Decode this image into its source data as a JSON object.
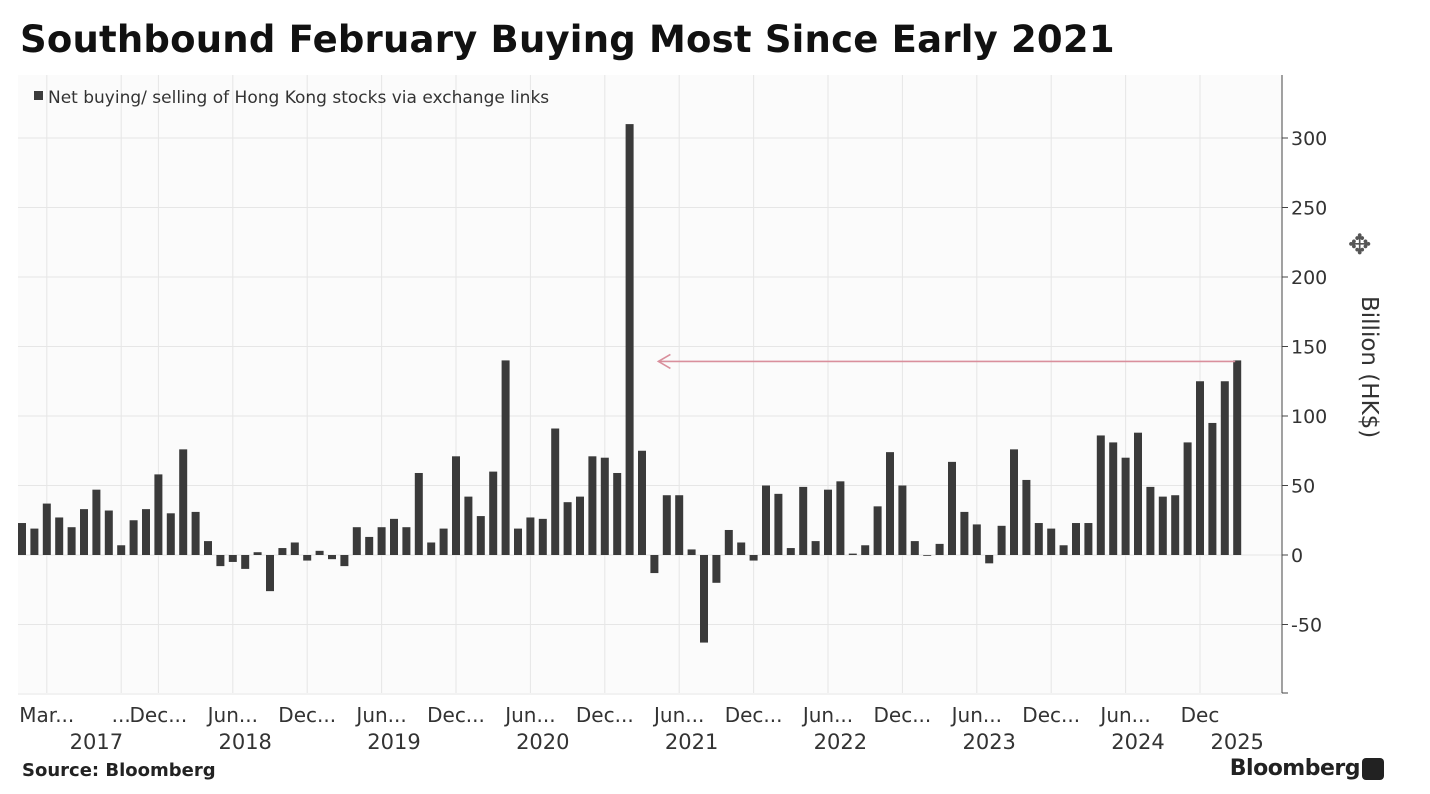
{
  "page": {
    "title": "Southbound February Buying Most Since Early 2021",
    "source": "Source: Bloomberg",
    "brand": "Bloomberg"
  },
  "colors": {
    "bar": "#3a3a3a",
    "grid": "#e6e6e6",
    "arrow": "#d98f9c",
    "text": "#333333"
  },
  "chart_data": {
    "type": "bar",
    "legend": "Net buying/ selling of Hong Kong stocks via exchange links",
    "legend_position": "top-left",
    "ylabel": "Billion (HK$)",
    "ylim": [
      -100,
      300
    ],
    "yticks": [
      -50,
      0,
      50,
      100,
      150,
      200,
      250,
      300
    ],
    "grid": true,
    "start": "2017-01",
    "values": [
      23,
      19,
      37,
      27,
      20,
      33,
      47,
      32,
      7,
      25,
      33,
      58,
      30,
      76,
      31,
      10,
      -8,
      -5,
      -10,
      2,
      -26,
      5,
      9,
      -4,
      3,
      -3,
      -8,
      20,
      13,
      20,
      26,
      20,
      59,
      9,
      19,
      71,
      42,
      28,
      60,
      140,
      19,
      27,
      26,
      91,
      38,
      42,
      71,
      70,
      59,
      310,
      75,
      -13,
      43,
      43,
      4,
      -63,
      -20,
      18,
      9,
      -4,
      50,
      44,
      5,
      49,
      10,
      47,
      53,
      1,
      7,
      35,
      74,
      50,
      10,
      0,
      8,
      67,
      31,
      22,
      -6,
      21,
      76,
      54,
      23,
      19,
      7,
      23,
      23,
      86,
      81,
      70,
      88,
      49,
      42,
      43,
      81,
      125,
      95,
      125,
      140
    ],
    "x_tick_labels": [
      {
        "label": "Mar...",
        "index": 2
      },
      {
        "label": "...",
        "index": 8
      },
      {
        "label": "Dec...",
        "index": 11
      },
      {
        "label": "Jun...",
        "index": 17
      },
      {
        "label": "Dec...",
        "index": 23
      },
      {
        "label": "Jun...",
        "index": 29
      },
      {
        "label": "Dec...",
        "index": 35
      },
      {
        "label": "Jun...",
        "index": 41
      },
      {
        "label": "Dec...",
        "index": 47
      },
      {
        "label": "Jun...",
        "index": 53
      },
      {
        "label": "Dec...",
        "index": 59
      },
      {
        "label": "Jun...",
        "index": 65
      },
      {
        "label": "Dec...",
        "index": 71
      },
      {
        "label": "Jun...",
        "index": 77
      },
      {
        "label": "Dec...",
        "index": 83
      },
      {
        "label": "Jun...",
        "index": 89
      },
      {
        "label": "Dec",
        "index": 95
      }
    ],
    "x_year_labels": [
      {
        "label": "2017",
        "index": 6
      },
      {
        "label": "2018",
        "index": 18
      },
      {
        "label": "2019",
        "index": 30
      },
      {
        "label": "2020",
        "index": 42
      },
      {
        "label": "2021",
        "index": 54
      },
      {
        "label": "2022",
        "index": 66
      },
      {
        "label": "2023",
        "index": 78
      },
      {
        "label": "2024",
        "index": 90
      },
      {
        "label": "2025",
        "index": 98
      }
    ],
    "annotation": {
      "type": "arrow",
      "from_index": 98,
      "to_index": 51,
      "value": 140
    }
  }
}
